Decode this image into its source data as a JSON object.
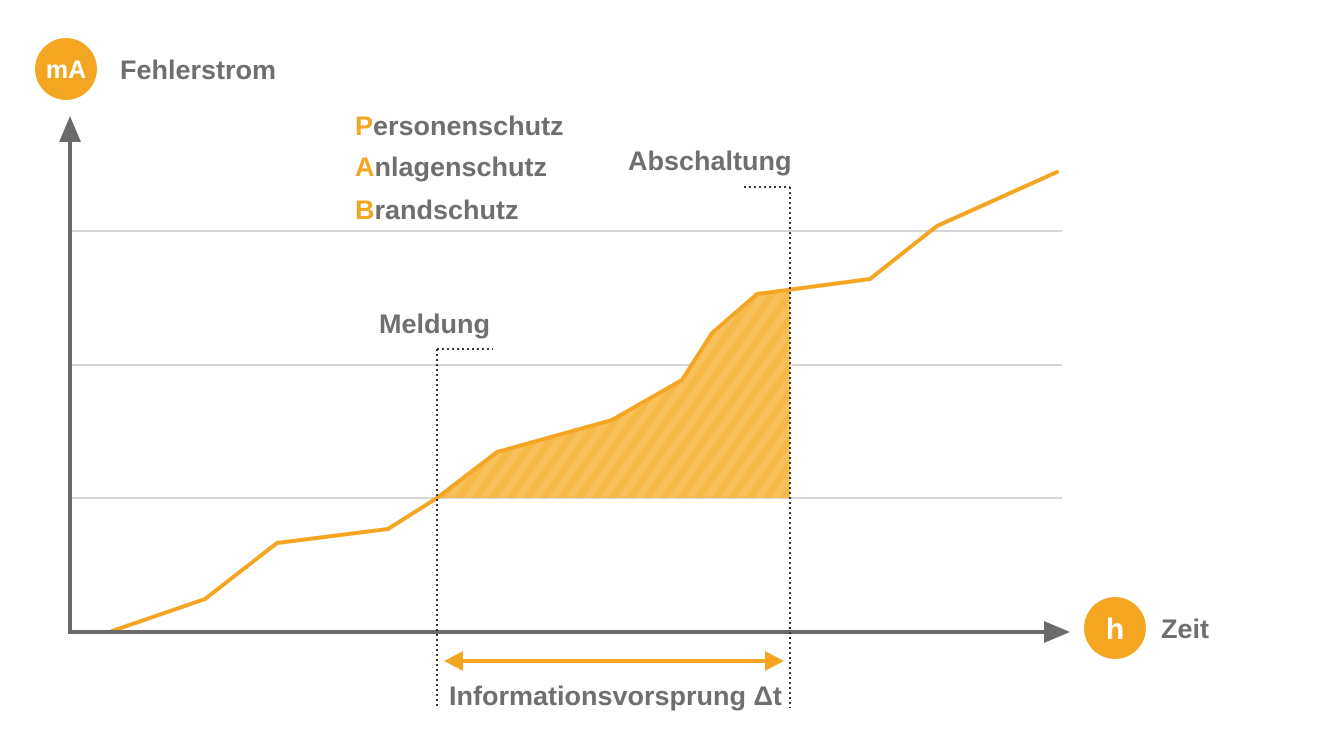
{
  "colors": {
    "accent": "#f4a623",
    "fill": "#f8c05a",
    "axis": "#6a6a6a",
    "grid": "#c9c9c9",
    "text": "#6f6f6f",
    "dotted": "#333333"
  },
  "y_axis": {
    "badge": "mA",
    "label": "Fehlerstrom"
  },
  "x_axis": {
    "badge": "h",
    "label": "Zeit"
  },
  "protection_levels": [
    {
      "initial": "P",
      "rest": "ersonenschutz"
    },
    {
      "initial": "A",
      "rest": "nlagenschutz"
    },
    {
      "initial": "B",
      "rest": "randschutz"
    }
  ],
  "markers": {
    "warning": "Meldung",
    "shutdown": "Abschaltung"
  },
  "interval_label": "Informationsvorsprung Δt",
  "icons": {
    "y_badge": "milliampere-badge-icon",
    "x_badge": "hour-badge-icon",
    "arrow": "double-arrow-icon"
  }
}
